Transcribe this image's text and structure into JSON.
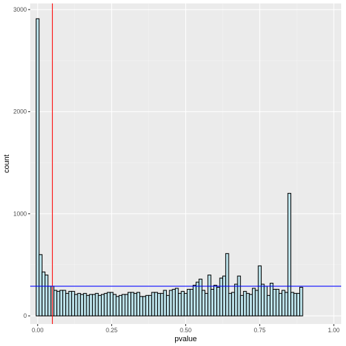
{
  "chart_data": {
    "type": "bar",
    "subtype": "histogram",
    "xlabel": "pvalue",
    "ylabel": "count",
    "xlim": [
      -0.025,
      1.025
    ],
    "ylim": [
      -80,
      3060
    ],
    "x_ticks": [
      0.0,
      0.25,
      0.5,
      0.75,
      1.0
    ],
    "x_tick_labels": [
      "0.00",
      "0.25",
      "0.50",
      "0.75",
      "1.00"
    ],
    "y_ticks": [
      0,
      1000,
      2000,
      3000
    ],
    "y_tick_labels": [
      "0",
      "1000",
      "2000",
      "3000"
    ],
    "bin_width": 0.01,
    "bin_centers_start": 0.0,
    "bin_counts": [
      2910,
      600,
      430,
      400,
      290,
      290,
      250,
      240,
      250,
      250,
      220,
      240,
      240,
      210,
      220,
      210,
      220,
      200,
      210,
      210,
      220,
      200,
      210,
      220,
      230,
      230,
      210,
      190,
      200,
      210,
      210,
      230,
      230,
      220,
      230,
      190,
      190,
      200,
      200,
      230,
      230,
      220,
      220,
      250,
      200,
      250,
      260,
      270,
      220,
      240,
      220,
      260,
      260,
      300,
      330,
      360,
      250,
      220,
      400,
      260,
      300,
      280,
      370,
      390,
      610,
      220,
      230,
      310,
      390,
      200,
      240,
      220,
      210,
      270,
      250,
      490,
      310,
      290,
      200,
      320,
      260,
      260,
      220,
      250,
      230,
      1200,
      230,
      220,
      220,
      280
    ],
    "fill_color": "#bfe6ee",
    "outline_color": "#000000",
    "reference_lines": [
      {
        "orientation": "vertical",
        "x": 0.05,
        "color": "#ff0000"
      },
      {
        "orientation": "horizontal",
        "y": 290,
        "color": "#0000ff"
      }
    ],
    "panel_background": "#ebebeb",
    "grid": true,
    "legend": "none"
  }
}
